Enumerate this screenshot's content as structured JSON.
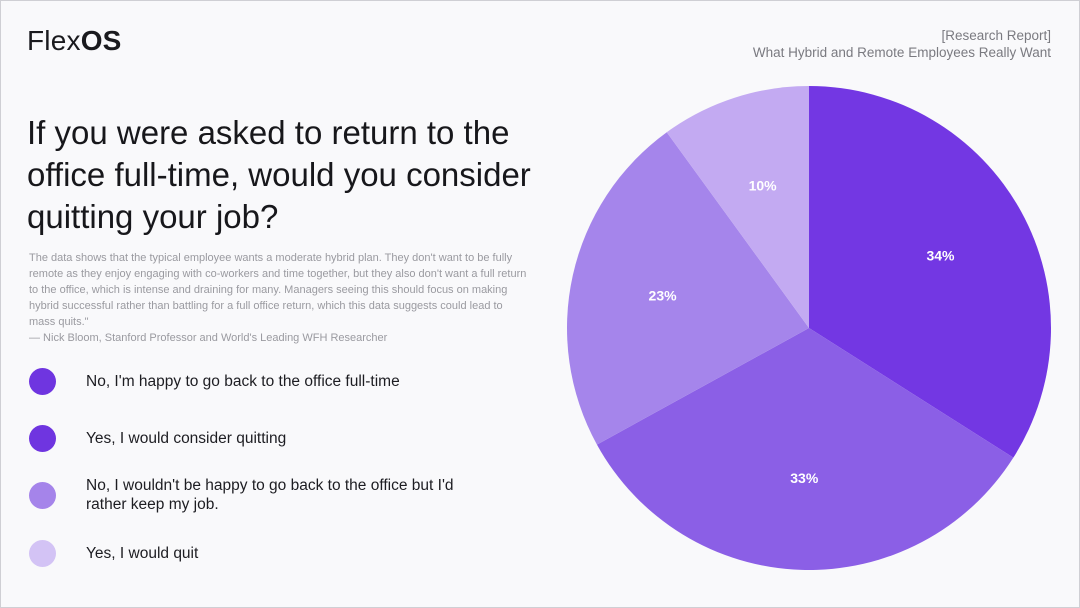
{
  "brand": {
    "name_light": "Flex",
    "name_bold": "OS"
  },
  "report": {
    "tag": "[Research Report]",
    "subtitle": "What Hybrid and Remote Employees Really Want"
  },
  "main": {
    "title": "If you were asked to return to the office full-time, would you consider quitting your job?",
    "quote": "The data shows that the typical employee wants a moderate hybrid plan. They don't want to be fully remote as they enjoy engaging with co-workers and time together, but they also don't want a full return to the office, which is intense and draining for many. Managers seeing this should focus on making hybrid successful rather than battling for a full office return, which this data suggests could lead to mass quits.\"",
    "attribution": "— Nick Bloom, Stanford Professor and World's Leading WFH Researcher"
  },
  "legend": [
    {
      "label": "No, I'm happy to go back to the office full-time",
      "color": "#6f35e0"
    },
    {
      "label": "Yes, I would consider quitting",
      "color": "#6f35e0"
    },
    {
      "label": "No, I wouldn't be happy to go back to the office but I'd rather keep my job.",
      "color": "#a584ea"
    },
    {
      "label": "Yes, I would quit",
      "color": "#d3c3f5"
    }
  ],
  "chart_data": {
    "type": "pie",
    "title": "If you were asked to return to the office full-time, would you consider quitting your job?",
    "categories": [
      "34% slice",
      "33% slice",
      "23% slice",
      "10% slice"
    ],
    "values": [
      34,
      33,
      23,
      10
    ],
    "labels": [
      "34%",
      "33%",
      "23%",
      "10%"
    ],
    "colors": [
      "#7337e3",
      "#8b5fe6",
      "#a585eb",
      "#c3aaf2"
    ],
    "start_angle": "12 o'clock, clockwise",
    "legend_position": "left",
    "legend_entries": [
      "No, I'm happy to go back to the office full-time",
      "Yes, I would consider quitting",
      "No, I wouldn't be happy to go back to the office but I'd rather keep my job.",
      "Yes, I would quit"
    ]
  }
}
